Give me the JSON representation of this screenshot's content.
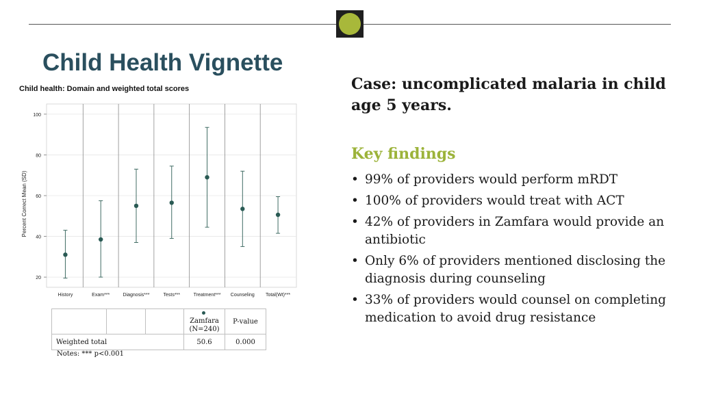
{
  "slide_title": "Child Health Vignette",
  "case_text": "Case: uncomplicated malaria in child age 5 years.",
  "findings_heading": "Key findings",
  "findings": [
    "99% of providers would perform mRDT",
    "100% of providers would treat with ACT",
    "42% of providers in Zamfara would provide an antibiotic",
    "Only 6% of providers mentioned disclosing the diagnosis during counseling",
    "33% of providers would counsel on completing medication to avoid drug resistance"
  ],
  "chart_data": {
    "type": "scatter",
    "title": "Child health: Domain and weighted total scores",
    "ylabel": "Percent Correct Mean (SD)",
    "xlabel": "",
    "ylim": [
      15,
      105
    ],
    "yticks": [
      20,
      40,
      60,
      80,
      100
    ],
    "grid": true,
    "categories": [
      "History",
      "Exam***",
      "Diagnosis***",
      "Tests***",
      "Treatment***",
      "Counseling",
      "Total(Wt)***"
    ],
    "series": [
      {
        "name": "Zamfara (N=240)",
        "mean": [
          31,
          38.5,
          55,
          56.5,
          69,
          53.5,
          50.6
        ],
        "low": [
          19.5,
          20,
          37,
          39,
          44.5,
          35,
          41.5
        ],
        "high": [
          43,
          57.5,
          73,
          74.5,
          93.5,
          72,
          59.5
        ]
      }
    ],
    "colors": {
      "marker": "#2a5a54",
      "whisker": "#3f6b63",
      "divider": "#8a8a8a",
      "grid": "#e6e6e6"
    }
  },
  "table": {
    "legend_label": "Zamfara",
    "legend_n": "(N=240)",
    "pvalue_header": "P-value",
    "row_label": "Weighted total",
    "value": "50.6",
    "pvalue": "0.000"
  },
  "notes": "Notes: *** p<0.001"
}
